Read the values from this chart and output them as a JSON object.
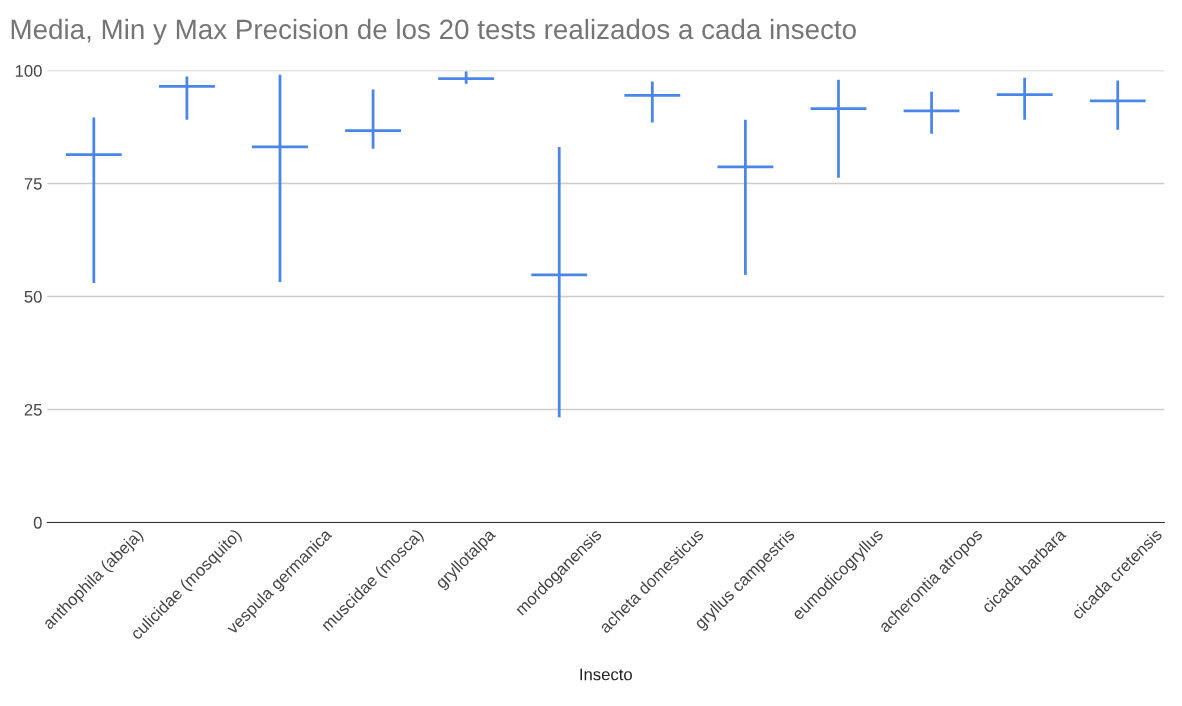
{
  "chart_data": {
    "type": "candlestick",
    "title": "Media, Min y Max Precision de los 20 tests realizados a cada insecto",
    "xlabel": "Insecto",
    "categories": [
      "anthophila (abeja)",
      "culicidae (mosquito)",
      "vespula germanica",
      "muscidae (mosca)",
      "gryllotalpa",
      "mordoganensis",
      "acheta domesticus",
      "gryllus campestris",
      "eumodicogryllus",
      "acherontia atropos",
      "cicada barbara",
      "cicada cretensis"
    ],
    "color": "#4a86e8",
    "ohlc": [
      [
        81.4,
        89.6,
        53.0,
        81.4
      ],
      [
        96.5,
        98.7,
        89.1,
        96.5
      ],
      [
        83.1,
        99.1,
        53.2,
        83.1
      ],
      [
        86.7,
        95.8,
        82.7,
        86.7
      ],
      [
        98.2,
        99.8,
        97.1,
        98.2
      ],
      [
        54.8,
        83.1,
        23.3,
        54.8
      ],
      [
        94.5,
        97.6,
        88.5,
        94.5
      ],
      [
        78.7,
        89.1,
        54.8,
        78.7
      ],
      [
        91.6,
        98.0,
        76.3,
        91.6
      ],
      [
        91.1,
        95.3,
        86.0,
        91.1
      ],
      [
        94.7,
        98.4,
        89.1,
        94.7
      ],
      [
        93.3,
        97.8,
        86.9,
        93.3
      ]
    ],
    "ylim": [
      0,
      100
    ],
    "yticks": [
      0,
      25,
      50,
      75,
      100
    ],
    "grid": "y"
  }
}
